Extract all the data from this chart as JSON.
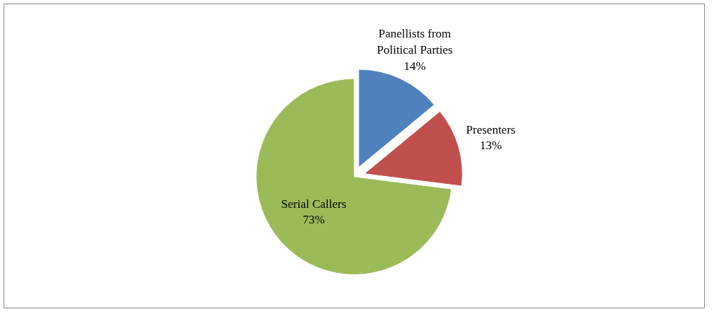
{
  "chart_data": {
    "type": "pie",
    "categories": [
      "Panellists from Political Parties",
      "Presenters",
      "Serial Callers"
    ],
    "values": [
      14,
      13,
      73
    ],
    "colors": [
      "#4f81bd",
      "#c0504d",
      "#9bbb59"
    ],
    "value_labels": [
      "14%",
      "13%",
      "73%"
    ]
  }
}
